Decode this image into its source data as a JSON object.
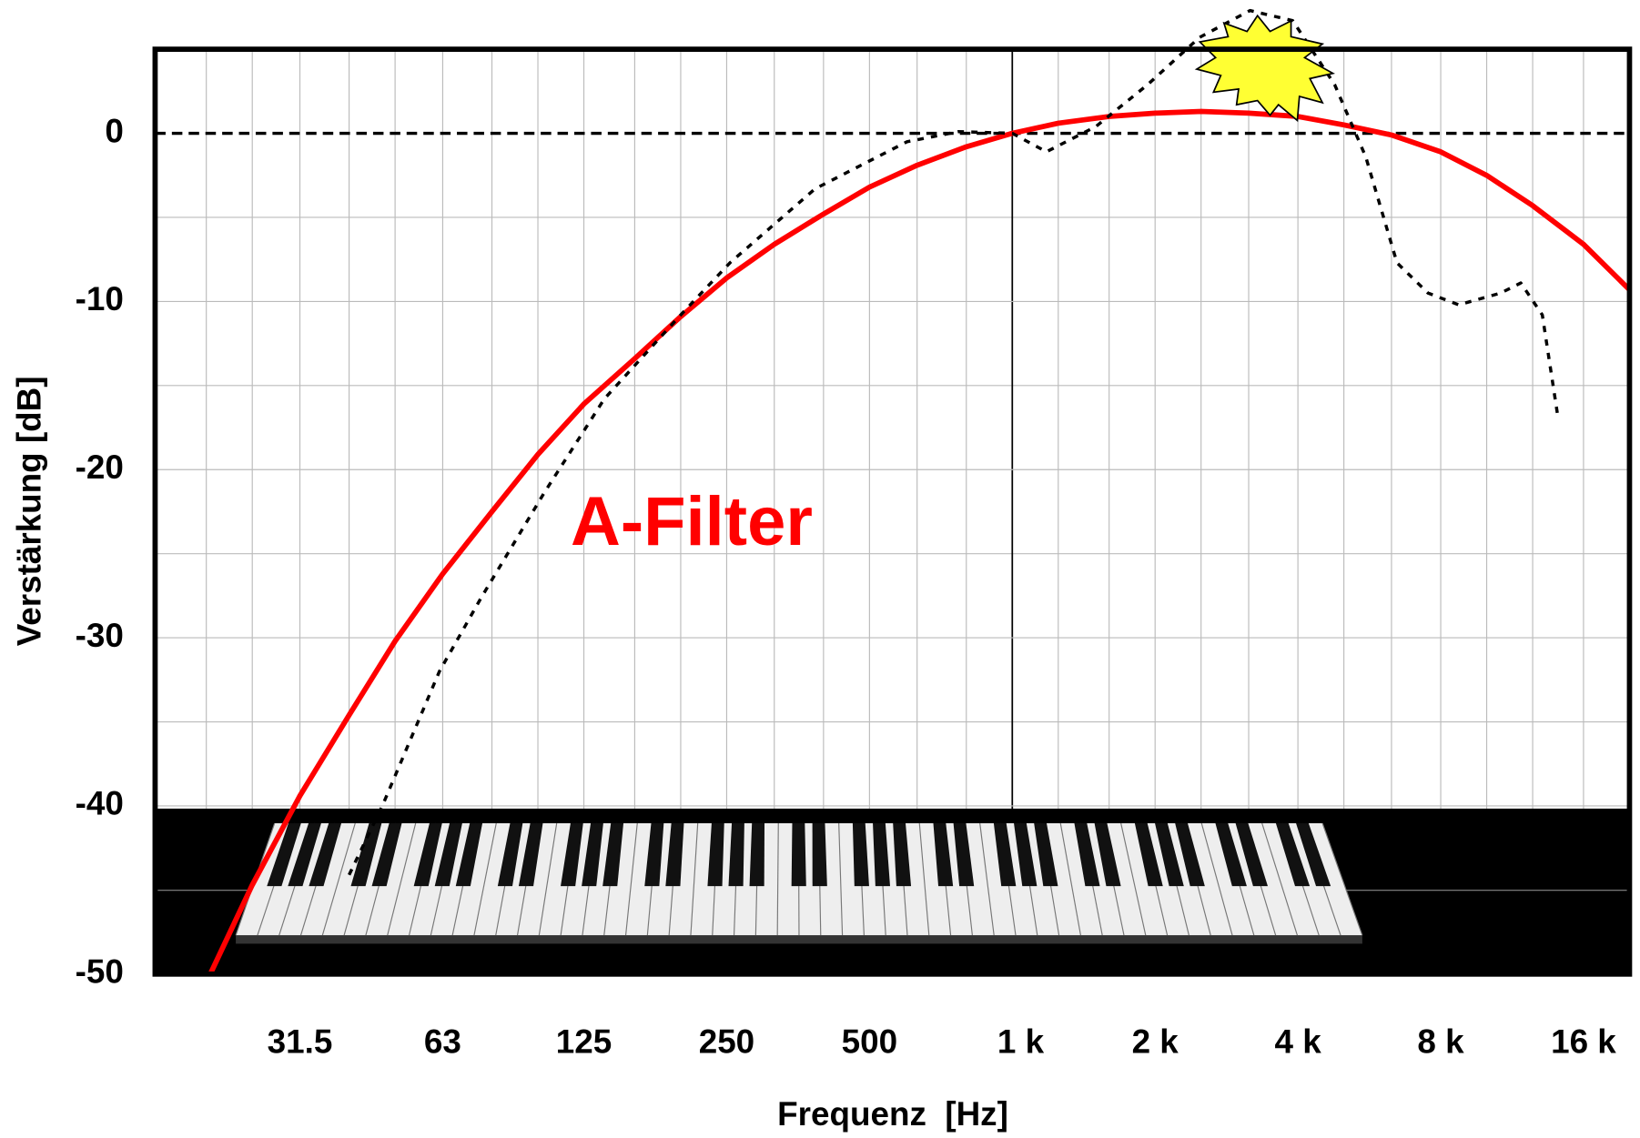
{
  "chart_data": {
    "type": "line",
    "xlabel": "Verstärkung [dB]",
    "ylabel_axis": "Frequenz  [Hz]",
    "annotation": "A-Filter",
    "xscale": "log",
    "grid": true,
    "xlim": [
      15.6,
      20000
    ],
    "ylim": [
      -50,
      5
    ],
    "xticks": [
      {
        "value": 31.5,
        "label": "31.5"
      },
      63,
      125,
      250,
      500,
      {
        "value": 1000,
        "label": "1 k"
      },
      {
        "value": 2000,
        "label": "2 k"
      },
      {
        "value": 4000,
        "label": "4 k"
      },
      {
        "value": 8000,
        "label": "8 k"
      },
      {
        "value": 16000,
        "label": "16 k"
      }
    ],
    "xminorticks": [
      20,
      25,
      40,
      50,
      80,
      100,
      160,
      200,
      315,
      400,
      630,
      800,
      1250,
      1600,
      2500,
      3150,
      5000,
      6300,
      10000,
      12500
    ],
    "yticks": [
      0,
      -10,
      -20,
      -30,
      -40,
      -50
    ],
    "yminorticks": [
      -5,
      -15,
      -25,
      -35,
      -45
    ],
    "series": [
      {
        "name": "A-Filter",
        "color": "#ff0000",
        "style": "solid",
        "x": [
          20,
          25,
          31.5,
          40,
          50,
          63,
          80,
          100,
          125,
          160,
          200,
          250,
          315,
          400,
          500,
          630,
          800,
          1000,
          1250,
          1600,
          2000,
          2500,
          3150,
          4000,
          5000,
          6300,
          8000,
          10000,
          12500,
          16000,
          20000
        ],
        "values": [
          -50.5,
          -44.7,
          -39.4,
          -34.6,
          -30.2,
          -26.2,
          -22.5,
          -19.1,
          -16.1,
          -13.4,
          -10.9,
          -8.6,
          -6.6,
          -4.8,
          -3.2,
          -1.9,
          -0.8,
          0,
          0.6,
          1.0,
          1.2,
          1.3,
          1.2,
          1.0,
          0.5,
          -0.1,
          -1.1,
          -2.5,
          -4.3,
          -6.6,
          -9.3
        ]
      },
      {
        "color": "#000000",
        "style": "dotted",
        "x": [
          40,
          47,
          62,
          76,
          103,
          138,
          200,
          254,
          384,
          600,
          770,
          1000,
          1180,
          1500,
          1930,
          2480,
          3170,
          3900,
          4780,
          5560,
          6470,
          7520,
          8730,
          10700,
          11800,
          13100,
          14100
        ],
        "values": [
          -44.1,
          -40,
          -32,
          -27.6,
          -21.4,
          -15.8,
          -10.8,
          -7.7,
          -3.3,
          -0.5,
          0.1,
          0,
          -1.1,
          0.4,
          2.9,
          5.7,
          7.3,
          6.7,
          2.9,
          -1.4,
          -7.7,
          -9.5,
          -10.2,
          -9.5,
          -8.9,
          -10.8,
          -16.7
        ]
      }
    ]
  }
}
